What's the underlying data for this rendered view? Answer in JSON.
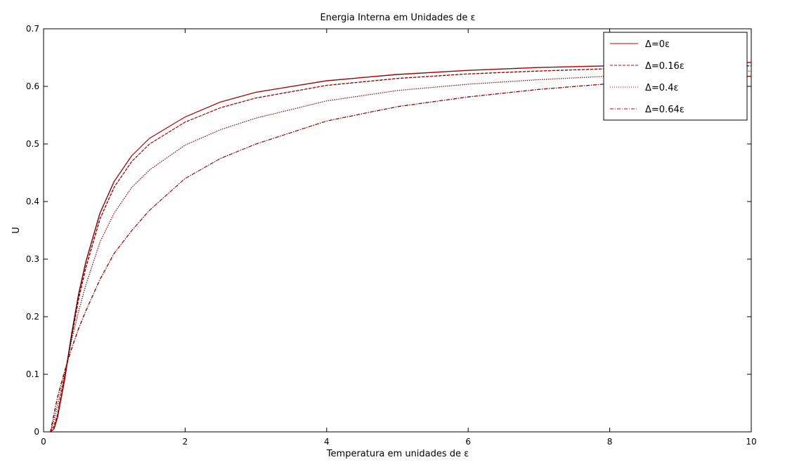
{
  "chart_data": {
    "type": "line",
    "title": "Energia Interna em Unidades de ε",
    "xlabel": "Temperatura em unidades de ε",
    "ylabel": "U",
    "xlim": [
      0,
      10
    ],
    "ylim": [
      0,
      0.7
    ],
    "xticks": [
      0,
      2,
      4,
      6,
      8,
      10
    ],
    "yticks": [
      0,
      0.1,
      0.2,
      0.3,
      0.4,
      0.5,
      0.6,
      0.7
    ],
    "grid": false,
    "legend_position": "top-right",
    "colors": {
      "line": "#cc0000",
      "overlay": "#000000",
      "axis": "#000000"
    },
    "series": [
      {
        "name": "Δ=0ε",
        "dash": "solid",
        "x": [
          0.1,
          0.15,
          0.2,
          0.3,
          0.4,
          0.5,
          0.6,
          0.8,
          1.0,
          1.25,
          1.5,
          2.0,
          2.5,
          3.0,
          4.0,
          5.0,
          6.0,
          7.0,
          8.0,
          9.0,
          10.0
        ],
        "y": [
          0.0,
          0.005,
          0.025,
          0.09,
          0.17,
          0.24,
          0.295,
          0.38,
          0.435,
          0.48,
          0.51,
          0.547,
          0.573,
          0.59,
          0.61,
          0.621,
          0.628,
          0.633,
          0.636,
          0.639,
          0.642
        ]
      },
      {
        "name": "Δ=0.16ε",
        "dash": "dashed",
        "x": [
          0.1,
          0.15,
          0.2,
          0.3,
          0.4,
          0.5,
          0.6,
          0.8,
          1.0,
          1.25,
          1.5,
          2.0,
          2.5,
          3.0,
          4.0,
          5.0,
          6.0,
          7.0,
          8.0,
          9.0,
          10.0
        ],
        "y": [
          0.0,
          0.01,
          0.03,
          0.095,
          0.165,
          0.232,
          0.285,
          0.37,
          0.425,
          0.47,
          0.5,
          0.538,
          0.563,
          0.58,
          0.602,
          0.614,
          0.622,
          0.627,
          0.631,
          0.634,
          0.636
        ]
      },
      {
        "name": "Δ=0.4ε",
        "dash": "dotted",
        "x": [
          0.1,
          0.15,
          0.2,
          0.3,
          0.4,
          0.5,
          0.6,
          0.8,
          1.0,
          1.25,
          1.5,
          2.0,
          2.5,
          3.0,
          4.0,
          5.0,
          6.0,
          7.0,
          8.0,
          9.0,
          10.0
        ],
        "y": [
          0.0,
          0.02,
          0.045,
          0.1,
          0.16,
          0.21,
          0.255,
          0.33,
          0.38,
          0.425,
          0.455,
          0.498,
          0.525,
          0.545,
          0.575,
          0.593,
          0.604,
          0.612,
          0.618,
          0.623,
          0.627
        ]
      },
      {
        "name": "Δ=0.64ε",
        "dash": "dashdot",
        "x": [
          0.1,
          0.15,
          0.2,
          0.3,
          0.4,
          0.5,
          0.6,
          0.8,
          1.0,
          1.25,
          1.5,
          2.0,
          2.5,
          3.0,
          4.0,
          5.0,
          6.0,
          7.0,
          8.0,
          9.0,
          10.0
        ],
        "y": [
          0.0,
          0.03,
          0.06,
          0.105,
          0.145,
          0.18,
          0.21,
          0.265,
          0.31,
          0.35,
          0.385,
          0.44,
          0.475,
          0.5,
          0.54,
          0.565,
          0.582,
          0.595,
          0.605,
          0.612,
          0.618
        ]
      }
    ]
  }
}
